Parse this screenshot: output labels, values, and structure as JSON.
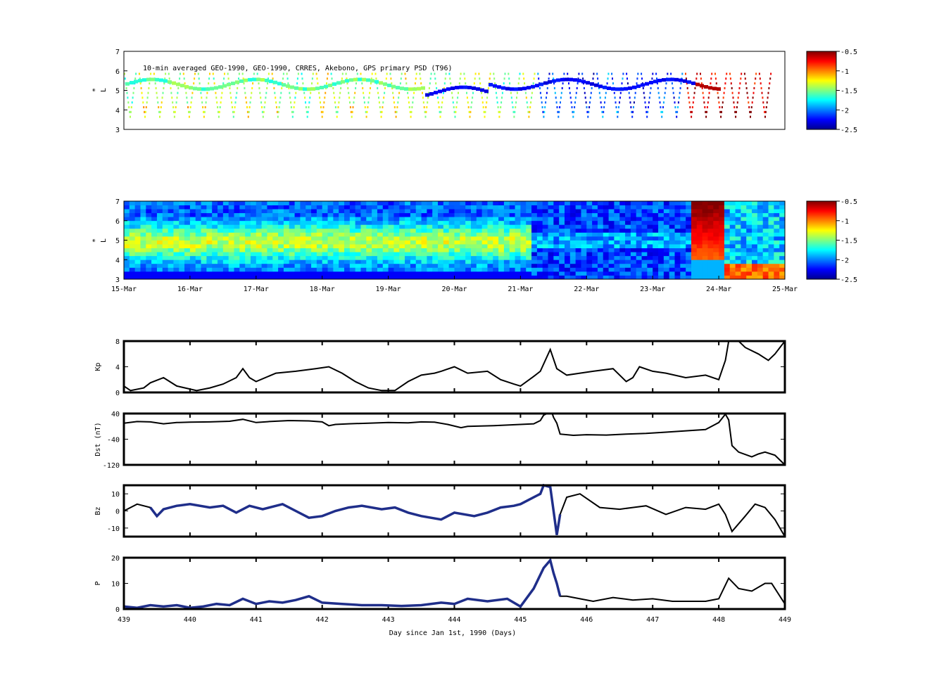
{
  "colors": {
    "line": "#000000",
    "highlight": "#1f2e8a",
    "colormap": [
      "#00008f",
      "#0000ff",
      "#0080ff",
      "#00ffff",
      "#80ff80",
      "#ffff00",
      "#ff8000",
      "#ff0000",
      "#800000"
    ]
  },
  "chart_data": [
    {
      "type": "heatmap",
      "title": "10-min averaged GEO-1990, GEO-1990, CRRES, Akebono, GPS  primary PSD (T96)",
      "ylabel": "L*",
      "ylabel_main": "L",
      "ylabel_sup": "*",
      "ylim": [
        3,
        7
      ],
      "yticks": [
        "3",
        "4",
        "5",
        "6",
        "7"
      ],
      "x_range_days": [
        439,
        449
      ],
      "colorbar": {
        "range": [
          -2.5,
          -0.5
        ],
        "ticks": [
          "-0.5",
          "-1",
          "-1.5",
          "-2",
          "-2.5"
        ]
      },
      "note": "sparse satellite-track data"
    },
    {
      "type": "heatmap",
      "ylabel": "L*",
      "ylabel_main": "L",
      "ylabel_sup": "*",
      "ylim": [
        3,
        7
      ],
      "yticks": [
        "3",
        "4",
        "5",
        "6",
        "7"
      ],
      "xticks": [
        "15-Mar",
        "16-Mar",
        "17-Mar",
        "18-Mar",
        "19-Mar",
        "20-Mar",
        "21-Mar",
        "22-Mar",
        "23-Mar",
        "24-Mar",
        "25-Mar"
      ],
      "x_range_days": [
        439,
        449
      ],
      "colorbar": {
        "range": [
          -2.5,
          -0.5
        ],
        "ticks": [
          "-0.5",
          "-1",
          "-1.5",
          "-2",
          "-2.5"
        ]
      }
    },
    {
      "type": "line",
      "ylabel": "Kp",
      "ylim": [
        0,
        8
      ],
      "yticks": [
        "0",
        "4",
        "8"
      ],
      "x": [
        439,
        439.1,
        439.3,
        439.4,
        439.6,
        439.8,
        440.1,
        440.3,
        440.5,
        440.7,
        440.8,
        440.9,
        441.0,
        441.3,
        441.6,
        441.9,
        442.1,
        442.3,
        442.5,
        442.7,
        442.9,
        443.1,
        443.3,
        443.5,
        443.7,
        443.8,
        444.0,
        444.2,
        444.5,
        444.7,
        444.9,
        445.0,
        445.2,
        445.3,
        445.45,
        445.55,
        445.7,
        445.9,
        446.1,
        446.4,
        446.6,
        446.7,
        446.8,
        447.0,
        447.2,
        447.5,
        447.8,
        448.0,
        448.1,
        448.15,
        448.3,
        448.4,
        448.6,
        448.75,
        448.85,
        449.0
      ],
      "y": [
        1.0,
        0.3,
        0.7,
        1.5,
        2.3,
        1.0,
        0.3,
        0.7,
        1.3,
        2.3,
        3.7,
        2.3,
        1.7,
        3.0,
        3.3,
        3.7,
        4.0,
        3.0,
        1.7,
        0.7,
        0.3,
        0.3,
        1.7,
        2.7,
        3.0,
        3.3,
        4.0,
        3.0,
        3.3,
        2.0,
        1.3,
        1.0,
        2.5,
        3.3,
        6.7,
        3.7,
        2.7,
        3.0,
        3.3,
        3.7,
        1.7,
        2.3,
        4.0,
        3.3,
        3.0,
        2.3,
        2.7,
        2.0,
        5.0,
        8.0,
        8.0,
        7.0,
        6.0,
        5.0,
        6.0,
        8.0
      ],
      "xlim": [
        439,
        449
      ]
    },
    {
      "type": "line",
      "ylabel": "Dst (nT)",
      "ylim": [
        -120,
        40
      ],
      "yticks": [
        "-120",
        "-40",
        "40"
      ],
      "x": [
        439,
        439.2,
        439.4,
        439.6,
        439.8,
        440.0,
        440.3,
        440.6,
        440.8,
        441.0,
        441.2,
        441.5,
        441.8,
        442.0,
        442.1,
        442.2,
        442.4,
        442.7,
        443.0,
        443.3,
        443.5,
        443.7,
        443.9,
        444.1,
        444.2,
        444.4,
        444.6,
        444.8,
        445.0,
        445.2,
        445.3,
        445.35,
        445.4,
        445.48,
        445.5,
        445.55,
        445.6,
        445.8,
        446.0,
        446.3,
        446.6,
        446.9,
        447.2,
        447.5,
        447.8,
        448.0,
        448.1,
        448.15,
        448.2,
        448.3,
        448.5,
        448.6,
        448.7,
        448.85,
        449.0
      ],
      "y": [
        10,
        15,
        14,
        8,
        12,
        13,
        14,
        16,
        22,
        12,
        15,
        18,
        17,
        14,
        2,
        6,
        8,
        10,
        12,
        11,
        14,
        13,
        6,
        -4,
        0,
        1,
        2,
        4,
        6,
        8,
        18,
        35,
        40,
        40,
        28,
        10,
        -24,
        -28,
        -26,
        -27,
        -24,
        -22,
        -18,
        -14,
        -10,
        12,
        38,
        20,
        -60,
        -80,
        -95,
        -86,
        -80,
        -90,
        -120
      ],
      "xlim": [
        439,
        449
      ]
    },
    {
      "type": "line",
      "ylabel": "Bz",
      "ylim": [
        -15,
        15
      ],
      "yticks": [
        "-10",
        "0",
        "10"
      ],
      "x": [
        439,
        439.2,
        439.4,
        439.5,
        439.6,
        439.8,
        440.0,
        440.3,
        440.5,
        440.7,
        440.9,
        441.1,
        441.4,
        441.6,
        441.8,
        442.0,
        442.2,
        442.4,
        442.6,
        442.9,
        443.1,
        443.3,
        443.5,
        443.8,
        444.0,
        444.3,
        444.5,
        444.7,
        444.9,
        445.0,
        445.1,
        445.3,
        445.35,
        445.45,
        445.5,
        445.55,
        445.6,
        445.7,
        445.9,
        446.2,
        446.5,
        446.7,
        446.9,
        447.2,
        447.5,
        447.8,
        448.0,
        448.1,
        448.2,
        448.4,
        448.55,
        448.7,
        448.85,
        449.0
      ],
      "y": [
        0,
        4,
        2,
        -3,
        1,
        3,
        4,
        2,
        3,
        -1,
        3,
        1,
        4,
        0,
        -4,
        -3,
        0,
        2,
        3,
        1,
        2,
        -1,
        -3,
        -5,
        -1,
        -3,
        -1,
        2,
        3,
        4,
        6,
        10,
        16,
        14,
        0,
        -14,
        -2,
        8,
        10,
        2,
        1,
        2,
        3,
        -2,
        2,
        1,
        4,
        -2,
        -12,
        -3,
        4,
        2,
        -5,
        -15
      ],
      "xlim": [
        439,
        449
      ]
    },
    {
      "type": "line",
      "ylabel": "P",
      "ylim": [
        0,
        20
      ],
      "yticks": [
        "0",
        "10",
        "20"
      ],
      "x": [
        439,
        439.2,
        439.4,
        439.6,
        439.8,
        440.0,
        440.2,
        440.4,
        440.6,
        440.8,
        441.0,
        441.2,
        441.4,
        441.6,
        441.8,
        442.0,
        442.3,
        442.6,
        442.9,
        443.2,
        443.5,
        443.8,
        444.0,
        444.2,
        444.5,
        444.8,
        445.0,
        445.2,
        445.35,
        445.45,
        445.5,
        445.55,
        445.6,
        445.7,
        445.9,
        446.1,
        446.4,
        446.7,
        447.0,
        447.3,
        447.6,
        447.8,
        448.0,
        448.15,
        448.3,
        448.5,
        448.7,
        448.8,
        449.0
      ],
      "y": [
        1,
        0.5,
        1.5,
        1,
        1.5,
        0.5,
        1,
        2,
        1.5,
        4,
        2,
        3,
        2.5,
        3.5,
        5,
        2.5,
        2,
        1.5,
        1.5,
        1.2,
        1.5,
        2.5,
        2,
        4,
        3,
        4,
        1,
        8,
        16,
        19,
        14,
        10,
        5,
        5,
        4,
        3,
        4.5,
        3.5,
        4,
        3,
        3,
        3,
        4,
        12,
        8,
        7,
        10,
        10,
        2
      ],
      "xlim": [
        439,
        449
      ],
      "xlabel": "Day since Jan 1st, 1990 (Days)",
      "xticks": [
        "439",
        "440",
        "441",
        "442",
        "443",
        "444",
        "445",
        "446",
        "447",
        "448",
        "449"
      ]
    }
  ]
}
